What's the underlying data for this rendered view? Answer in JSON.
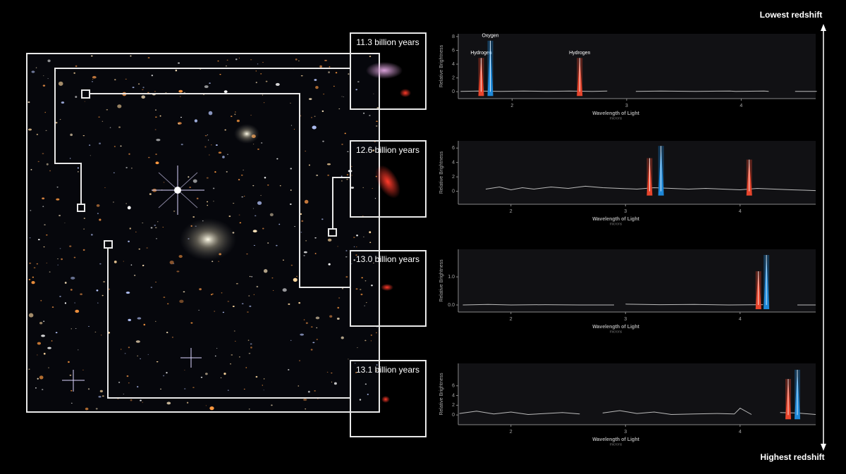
{
  "redshift": {
    "top": "Lowest redshift",
    "bottom": "Highest redshift"
  },
  "galaxies": [
    {
      "label": "11.3 billion years"
    },
    {
      "label": "12.6 billion years"
    },
    {
      "label": "13.0 billion years"
    },
    {
      "label": "13.1 billion years"
    }
  ],
  "chart_data": [
    {
      "type": "line",
      "ylabel": "Relative Brightness",
      "xlabel": "Wavelength of Light",
      "xunit": "microns",
      "color": "#bbbbbb",
      "xlim": [
        1.53,
        4.65
      ],
      "ylim": [
        -1,
        8.4
      ],
      "xticks": [
        2,
        3,
        4
      ],
      "yticks": [
        0,
        2,
        4,
        6,
        8
      ],
      "x": [
        1.55,
        1.7,
        1.9,
        2.1,
        2.3,
        2.5,
        2.7,
        2.83,
        2.9,
        3.08,
        3.3,
        3.6,
        3.9,
        3.95,
        4.2,
        4.24,
        4.3,
        4.47,
        4.66
      ],
      "values": [
        0.05,
        0.1,
        0.05,
        0.1,
        0.05,
        0.1,
        0.05,
        0.1,
        null,
        0.05,
        0.1,
        0.05,
        0.1,
        0.05,
        0.1,
        0.05,
        null,
        0.05,
        0.05
      ],
      "peaks": [
        {
          "name": "Hydrogen",
          "x": 1.73,
          "value": 4.9,
          "color": "#e8452c"
        },
        {
          "name": "Oxygen",
          "x": 1.81,
          "value": 7.4,
          "color": "#1e88d8"
        },
        {
          "name": "Hydrogen",
          "x": 2.59,
          "value": 4.9,
          "color": "#e8452c"
        }
      ]
    },
    {
      "type": "line",
      "ylabel": "Relative Brightness",
      "xlabel": "Wavelength of Light",
      "xunit": "microns",
      "color": "#bbbbbb",
      "xlim": [
        1.54,
        4.66
      ],
      "ylim": [
        -1.8,
        7
      ],
      "xticks": [
        2,
        3,
        4
      ],
      "yticks": [
        0,
        2,
        4,
        6
      ],
      "x": [
        1.78,
        1.9,
        2.0,
        2.1,
        2.2,
        2.35,
        2.5,
        2.65,
        2.8,
        2.95,
        3.1,
        3.25,
        3.4,
        3.55,
        3.7,
        3.85,
        4.0,
        4.15,
        4.3,
        4.45,
        4.66
      ],
      "values": [
        0.3,
        0.6,
        0.2,
        0.5,
        0.3,
        0.6,
        0.4,
        0.7,
        0.5,
        0.4,
        0.3,
        0.5,
        0.4,
        0.3,
        0.4,
        0.3,
        0.2,
        0.4,
        0.3,
        0.2,
        0.1
      ],
      "peaks": [
        {
          "x": 3.21,
          "value": 4.6,
          "color": "#e8452c"
        },
        {
          "x": 3.31,
          "value": 6.3,
          "color": "#1e88d8"
        },
        {
          "x": 4.08,
          "value": 4.4,
          "color": "#e8452c"
        }
      ]
    },
    {
      "type": "line",
      "ylabel": "Relative Brightness",
      "xlabel": "Wavelength of Light",
      "xunit": "microns",
      "color": "#bbbbbb",
      "xlim": [
        1.54,
        4.66
      ],
      "ylim": [
        -0.25,
        1.98
      ],
      "xticks": [
        2,
        3,
        4
      ],
      "yticks": [
        {
          "value": 0,
          "label": "0.0"
        },
        {
          "value": 1,
          "label": "1.0"
        }
      ],
      "x": [
        1.58,
        1.8,
        2.0,
        2.3,
        2.6,
        2.9,
        2.96,
        3.0,
        3.3,
        3.6,
        3.9,
        4.2,
        4.3,
        4.5,
        4.62,
        4.66
      ],
      "values": [
        0.0,
        0.02,
        0.0,
        0.01,
        0.0,
        0.0,
        null,
        0.03,
        0.01,
        0.02,
        0.0,
        0.01,
        null,
        0.0,
        0.0,
        0.0
      ],
      "peaks": [
        {
          "x": 4.16,
          "value": 1.2,
          "color": "#e8452c"
        },
        {
          "x": 4.23,
          "value": 1.78,
          "color": "#1e88d8"
        }
      ]
    },
    {
      "type": "line",
      "ylabel": "Relative Brightness",
      "xlabel": "Wavelength of Light",
      "xunit": "microns",
      "color": "#bbbbbb",
      "xlim": [
        1.54,
        4.66
      ],
      "ylim": [
        -2,
        10.6
      ],
      "xticks": [
        2,
        3,
        4
      ],
      "yticks": [
        0,
        2,
        4,
        6
      ],
      "x": [
        1.55,
        1.7,
        1.85,
        2.0,
        2.15,
        2.3,
        2.45,
        2.6,
        2.7,
        2.8,
        2.95,
        3.1,
        3.25,
        3.4,
        3.6,
        3.8,
        3.95,
        4.0,
        4.1,
        4.2,
        4.35,
        4.5,
        4.66
      ],
      "values": [
        0.3,
        0.8,
        0.2,
        0.6,
        0.1,
        0.3,
        0.5,
        0.2,
        null,
        0.4,
        0.9,
        0.3,
        0.6,
        0.1,
        0.2,
        0.3,
        0.2,
        1.4,
        0.1,
        null,
        0.5,
        0.4,
        0.1
      ],
      "peaks": [
        {
          "x": 4.42,
          "value": 7.4,
          "color": "#e8452c"
        },
        {
          "x": 4.5,
          "value": 9.3,
          "color": "#1e88d8"
        }
      ]
    }
  ]
}
